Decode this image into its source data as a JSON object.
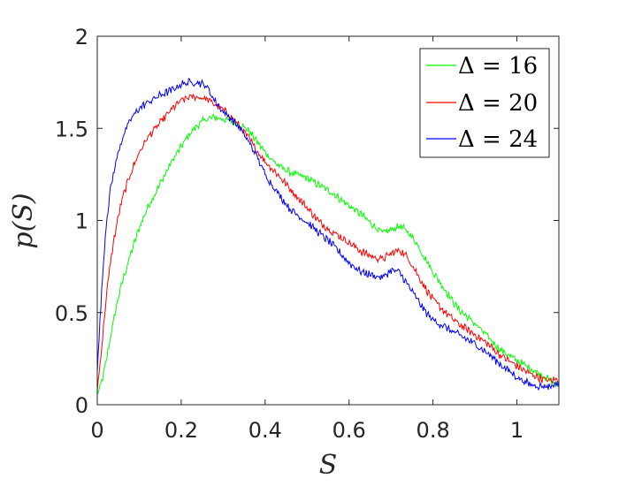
{
  "chart_data": {
    "type": "line",
    "title": "",
    "xlabel": "S",
    "ylabel": "p(S)",
    "xlim": [
      0,
      1.1
    ],
    "ylim": [
      0,
      2
    ],
    "xticks": [
      0,
      0.2,
      0.4,
      0.6,
      0.8,
      1
    ],
    "xtick_labels": [
      "0",
      "0.2",
      "0.4",
      "0.6",
      "0.8",
      "1"
    ],
    "yticks": [
      0,
      0.5,
      1,
      1.5,
      2
    ],
    "ytick_labels": [
      "0",
      "0.5",
      "1",
      "1.5",
      "2"
    ],
    "grid": false,
    "legend_position": "top-right",
    "x": [
      0,
      0.01,
      0.02,
      0.03,
      0.04,
      0.05,
      0.06,
      0.08,
      0.1,
      0.12,
      0.15,
      0.18,
      0.2,
      0.22,
      0.24,
      0.26,
      0.28,
      0.3,
      0.32,
      0.34,
      0.36,
      0.38,
      0.4,
      0.43,
      0.46,
      0.5,
      0.53,
      0.56,
      0.6,
      0.63,
      0.66,
      0.68,
      0.7,
      0.72,
      0.74,
      0.76,
      0.78,
      0.8,
      0.83,
      0.86,
      0.9,
      0.93,
      0.96,
      1.0,
      1.03,
      1.06,
      1.08,
      1.1
    ],
    "series": [
      {
        "name": "Δ = 16",
        "color": "#00ff00",
        "values": [
          0.05,
          0.12,
          0.22,
          0.35,
          0.47,
          0.58,
          0.67,
          0.82,
          0.96,
          1.07,
          1.2,
          1.33,
          1.4,
          1.47,
          1.52,
          1.55,
          1.56,
          1.55,
          1.54,
          1.52,
          1.49,
          1.43,
          1.37,
          1.3,
          1.26,
          1.23,
          1.19,
          1.15,
          1.08,
          1.03,
          0.97,
          0.93,
          0.95,
          0.97,
          0.94,
          0.88,
          0.8,
          0.72,
          0.62,
          0.52,
          0.44,
          0.37,
          0.3,
          0.24,
          0.2,
          0.16,
          0.13,
          0.1
        ]
      },
      {
        "name": "Δ = 20",
        "color": "#ff0000",
        "values": [
          0.08,
          0.3,
          0.55,
          0.75,
          0.9,
          1.02,
          1.12,
          1.26,
          1.37,
          1.45,
          1.53,
          1.61,
          1.65,
          1.67,
          1.67,
          1.66,
          1.63,
          1.6,
          1.56,
          1.51,
          1.45,
          1.38,
          1.32,
          1.25,
          1.17,
          1.07,
          0.99,
          0.94,
          0.88,
          0.83,
          0.8,
          0.79,
          0.82,
          0.84,
          0.8,
          0.72,
          0.64,
          0.57,
          0.5,
          0.44,
          0.38,
          0.33,
          0.27,
          0.21,
          0.17,
          0.14,
          0.13,
          0.14
        ]
      },
      {
        "name": "Δ = 24",
        "color": "#0000ff",
        "values": [
          0.18,
          0.6,
          0.95,
          1.15,
          1.27,
          1.37,
          1.45,
          1.55,
          1.61,
          1.64,
          1.68,
          1.71,
          1.74,
          1.75,
          1.75,
          1.73,
          1.65,
          1.59,
          1.55,
          1.5,
          1.43,
          1.35,
          1.25,
          1.15,
          1.06,
          0.99,
          0.93,
          0.87,
          0.77,
          0.72,
          0.7,
          0.69,
          0.73,
          0.72,
          0.65,
          0.58,
          0.51,
          0.46,
          0.42,
          0.38,
          0.33,
          0.28,
          0.22,
          0.15,
          0.11,
          0.1,
          0.1,
          0.12
        ]
      }
    ]
  }
}
